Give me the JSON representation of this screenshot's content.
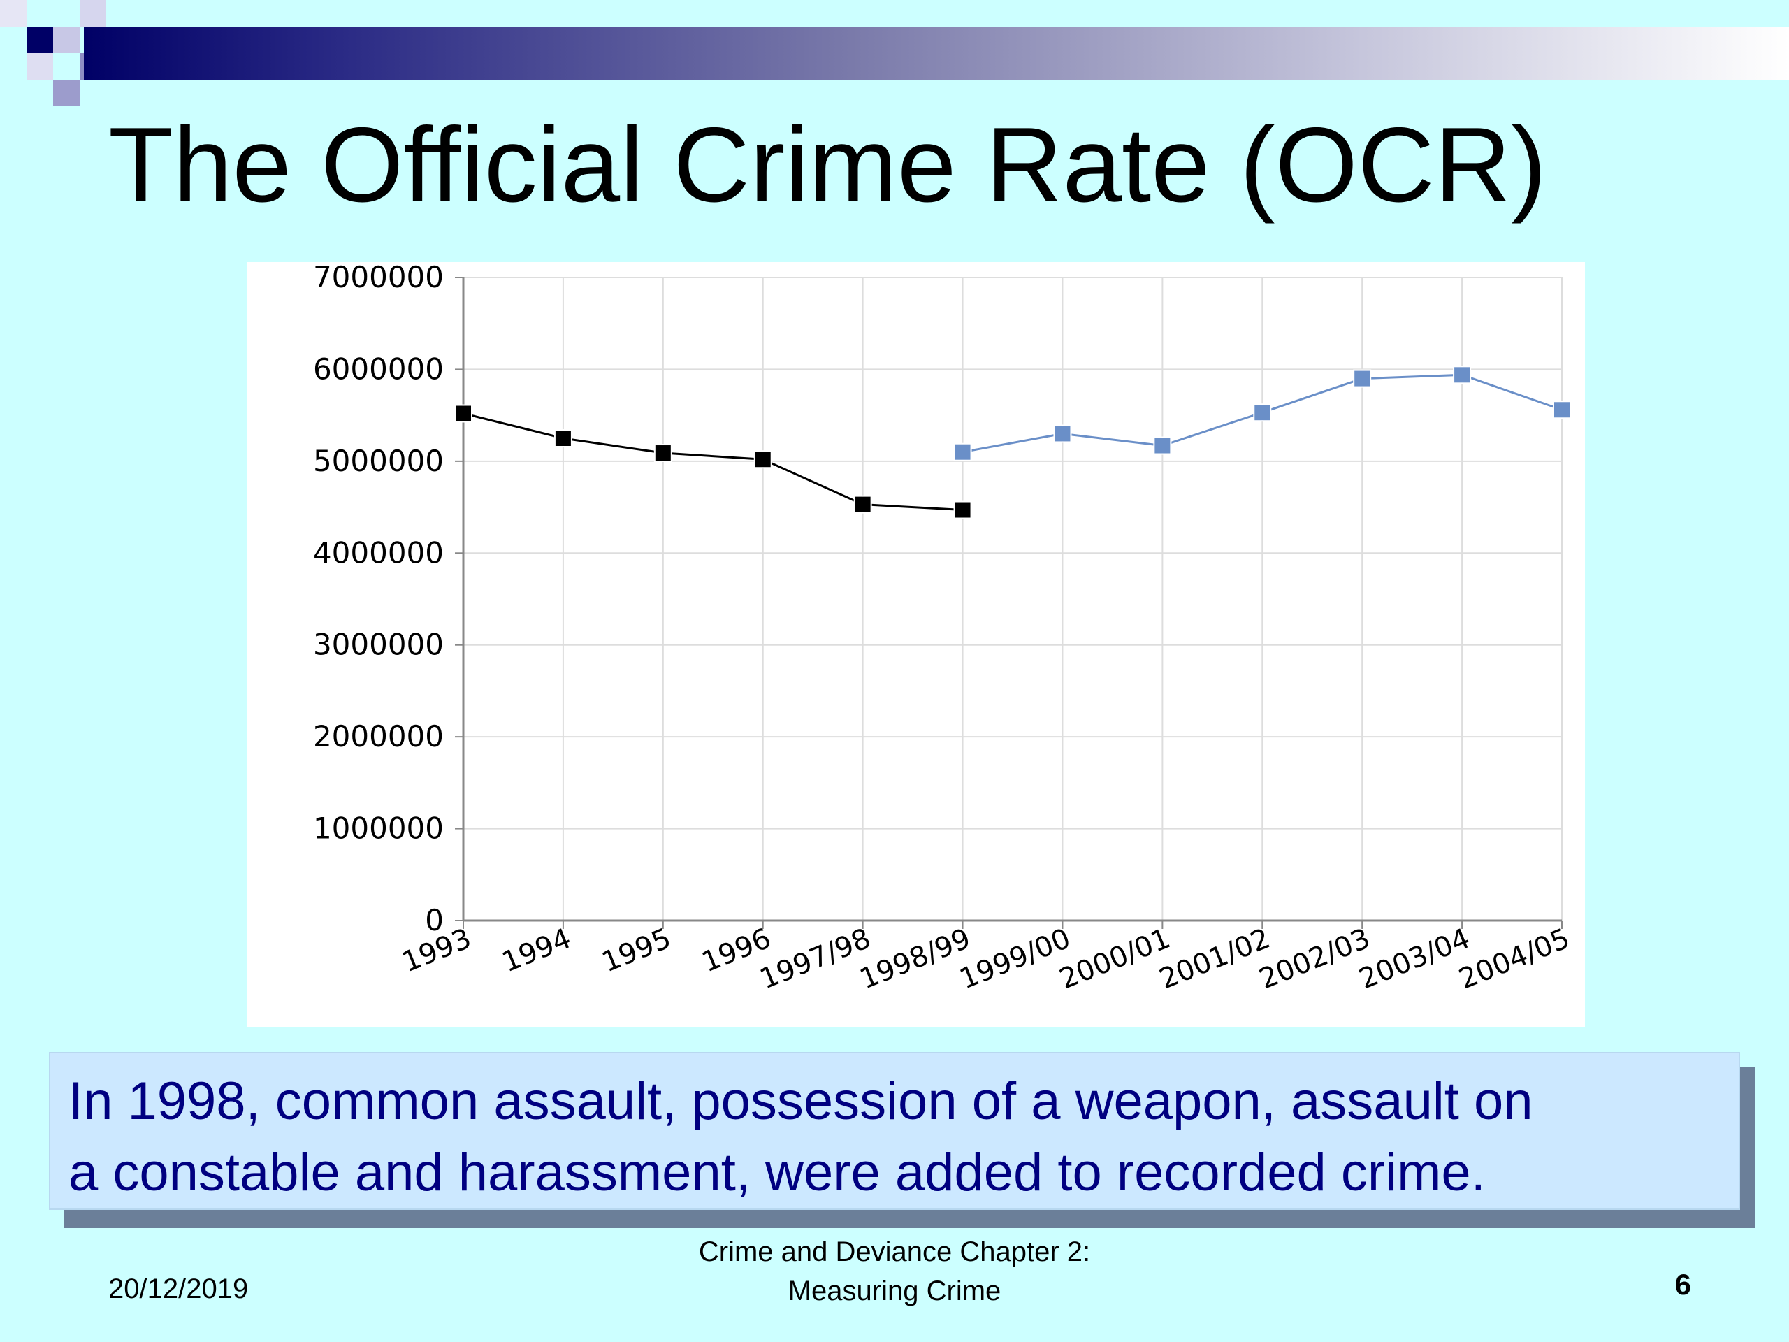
{
  "slide": {
    "title": "The Official Crime Rate (OCR)",
    "note_line1": "In 1998, common assault, possession of a weapon, assault on",
    "note_line2": "a constable and harassment, were added to recorded crime.",
    "footer_date": "20/12/2019",
    "footer_center_line1": "Crime and Deviance Chapter 2:",
    "footer_center_line2": "Measuring Crime",
    "page_number": "6"
  },
  "colors": {
    "background": "#ccffff",
    "series_old": "#000000",
    "series_new": "#6a8fc8",
    "note_text": "#000080"
  },
  "chart_data": {
    "type": "line",
    "categories": [
      "1993",
      "1994",
      "1995",
      "1996",
      "1997/98",
      "1998/99",
      "1999/00",
      "2000/01",
      "2001/02",
      "2002/03",
      "2003/04",
      "2004/05"
    ],
    "yticks": [
      "0",
      "1000000",
      "2000000",
      "3000000",
      "4000000",
      "5000000",
      "6000000",
      "7000000"
    ],
    "ylim": [
      0,
      7000000
    ],
    "grid": true,
    "series": [
      {
        "color": "#000000",
        "values": [
          5520000,
          5250000,
          5090000,
          5020000,
          4530000,
          4470000,
          null,
          null,
          null,
          null,
          null,
          null
        ]
      },
      {
        "color": "#6a8fc8",
        "values": [
          null,
          null,
          null,
          null,
          null,
          5100000,
          5300000,
          5170000,
          5530000,
          5900000,
          5940000,
          5560000
        ]
      }
    ]
  }
}
